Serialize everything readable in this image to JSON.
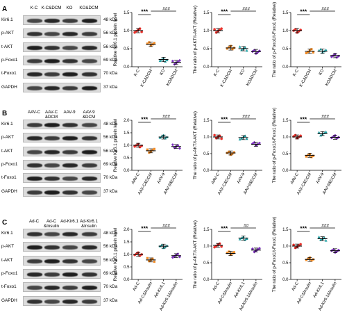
{
  "panels": [
    {
      "letter": "A",
      "lanes": [
        "K-C",
        "K-C&DCM",
        "KO",
        "KO&DCM"
      ],
      "blots": [
        {
          "name": "Kir6.1",
          "kda": "48 kDa"
        },
        {
          "name": "p-AKT",
          "kda": "56 kDa"
        },
        {
          "name": "t-AKT",
          "kda": "56 kDa"
        },
        {
          "name": "p-Foxo1",
          "kda": "69 kDa"
        },
        {
          "name": "t-Foxo1",
          "kda": "70 kDa"
        },
        {
          "name": "GAPDH",
          "kda": "37 kDa"
        }
      ]
    },
    {
      "letter": "B",
      "lanes": [
        "AAV-C",
        "AAV-C\n&DCM",
        "AAV-9",
        "AAV-9\n&DCM"
      ],
      "blots": [
        {
          "name": "Kir6.1",
          "kda": "48 kDa"
        },
        {
          "name": "p-AKT",
          "kda": "56 kDa"
        },
        {
          "name": "t-AKT",
          "kda": "56 kDa"
        },
        {
          "name": "p-Foxo1",
          "kda": "69 kDa"
        },
        {
          "name": "t-Foxo1",
          "kda": "70 kDa"
        },
        {
          "name": "GAPDH",
          "kda": "37 kDa"
        }
      ]
    },
    {
      "letter": "C",
      "lanes": [
        "Ad-C",
        "Ad-C\n&Insulin",
        "Ad-Kir6.1",
        "Ad-Kir6.1\n&Insulin"
      ],
      "blots": [
        {
          "name": "Kir6.1",
          "kda": "48 kDa"
        },
        {
          "name": "p-AKT",
          "kda": "56 kDa"
        },
        {
          "name": "t-AKT",
          "kda": "56 kDa"
        },
        {
          "name": "p-Foxo1",
          "kda": "69 kDa"
        },
        {
          "name": "t-Foxo1",
          "kda": "70 kDa"
        },
        {
          "name": "GAPDH",
          "kda": "37 kDa"
        }
      ]
    }
  ],
  "colors": {
    "ctrl": "#e8322c",
    "treat": "#f08a24",
    "ko": "#1a9fa3",
    "kotreat": "#7b2fbe"
  },
  "chart_data": [
    {
      "panel": "A",
      "type": "scatter",
      "ylabel": "Relative Kir6.1 protein level",
      "categories": [
        "K-C",
        "K-C&DCM",
        "KO",
        "KO&DCM"
      ],
      "values": [
        1.0,
        0.62,
        0.2,
        0.12
      ],
      "ylim": [
        0,
        1.5
      ],
      "yticks": [
        "0.0",
        "0.5",
        "1.0",
        "1.5"
      ],
      "sig": [
        "***",
        "###"
      ]
    },
    {
      "panel": "A",
      "type": "scatter",
      "ylabel": "The ratio of p-AKT/t-AKT (Relative)",
      "categories": [
        "K-C",
        "K-C&DCM",
        "KO",
        "KO&DCM"
      ],
      "values": [
        1.0,
        0.52,
        0.5,
        0.42
      ],
      "ylim": [
        0,
        1.5
      ],
      "yticks": [
        "0.0",
        "0.5",
        "1.0",
        "1.5"
      ],
      "sig": [
        "***",
        "###"
      ]
    },
    {
      "panel": "A",
      "type": "scatter",
      "ylabel": "The ratio of p-Foxo1/t-Foxo1 (Relative)",
      "categories": [
        "K-C",
        "K-C&DCM",
        "KO",
        "KO&DCM"
      ],
      "values": [
        1.0,
        0.43,
        0.43,
        0.31
      ],
      "ylim": [
        0,
        1.5
      ],
      "yticks": [
        "0.0",
        "0.5",
        "1.0",
        "1.5"
      ],
      "sig": [
        "***",
        "###"
      ]
    },
    {
      "panel": "B",
      "type": "scatter",
      "ylabel": "Relative Kir6.1 protein level",
      "categories": [
        "AAV-C",
        "AAV-C&DCM",
        "AAV-9",
        "AAV-9&DCM"
      ],
      "values": [
        1.0,
        0.78,
        1.33,
        0.95
      ],
      "ylim": [
        0,
        2.0
      ],
      "yticks": [
        "0.0",
        "0.5",
        "1.0",
        "1.5",
        "2.0"
      ],
      "sig": [
        "***",
        "###"
      ]
    },
    {
      "panel": "B",
      "type": "scatter",
      "ylabel": "The ratio of p-AKT/t-AKT (Relative)",
      "categories": [
        "AAV-C",
        "AAV-C&DCM",
        "AAV-9",
        "AAV-9&DCM"
      ],
      "values": [
        1.0,
        0.52,
        0.98,
        0.78
      ],
      "ylim": [
        0,
        1.5
      ],
      "yticks": [
        "0.0",
        "0.5",
        "1.0",
        "1.5"
      ],
      "sig": [
        "***",
        "###"
      ]
    },
    {
      "panel": "B",
      "type": "scatter",
      "ylabel": "The ratio of p-Foxo1/t-Foxo1 (Relative)",
      "categories": [
        "AAV-C",
        "AAV-C&DCM",
        "AAV-9",
        "AAV-9&DCM"
      ],
      "values": [
        1.0,
        0.45,
        1.1,
        0.99
      ],
      "ylim": [
        0,
        1.5
      ],
      "yticks": [
        "0.0",
        "0.5",
        "1.0",
        "1.5"
      ],
      "sig": [
        "***",
        "###"
      ]
    },
    {
      "panel": "C",
      "type": "scatter",
      "ylabel": "Relative Kir6.1 protein level",
      "categories": [
        "Ad-C",
        "Ad-C&Insulin",
        "Ad-Kir6.1",
        "Ad-Kir6.1&Insulin"
      ],
      "values": [
        1.0,
        0.78,
        1.33,
        0.95
      ],
      "ylim": [
        0,
        2.0
      ],
      "yticks": [
        "0.0",
        "0.5",
        "1.0",
        "1.5",
        "2.0"
      ],
      "sig": [
        "***",
        "###"
      ]
    },
    {
      "panel": "C",
      "type": "scatter",
      "ylabel": "The ratio of p-AKT/t-AKT (Relative)",
      "categories": [
        "Ad-C",
        "Ad-C&Insulin",
        "Ad-Kir6.1",
        "Ad-Kir6.1&Insulin"
      ],
      "values": [
        1.02,
        0.78,
        1.24,
        0.88
      ],
      "ylim": [
        0,
        1.5
      ],
      "yticks": [
        "0.0",
        "0.5",
        "1.0",
        "1.5"
      ],
      "sig": [
        "***",
        "##"
      ]
    },
    {
      "panel": "C",
      "type": "scatter",
      "ylabel": "The ratio of p-Foxo1/t-Foxo1 (Relative)",
      "categories": [
        "Ad-C",
        "Ad-C&Insulin",
        "Ad-Kir6.1",
        "Ad-Kir6.1&Insulin"
      ],
      "values": [
        1.0,
        0.6,
        1.22,
        0.86
      ],
      "ylim": [
        0,
        1.5
      ],
      "yticks": [
        "0.0",
        "0.5",
        "1.0",
        "1.5"
      ],
      "sig": [
        "***",
        "###"
      ]
    }
  ]
}
